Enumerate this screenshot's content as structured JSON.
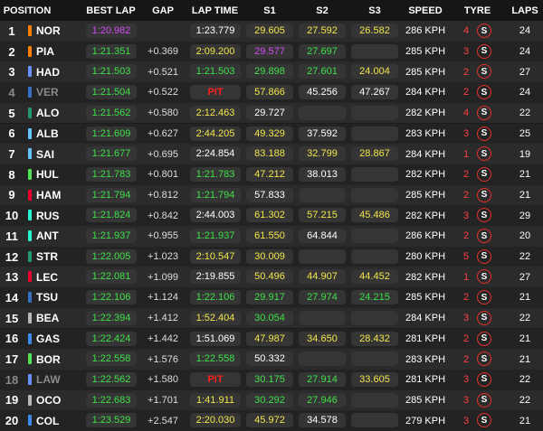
{
  "palette": {
    "p": "#d24df7",
    "g": "#3fe04a",
    "y": "#f2e64c",
    "w": "#ffffff",
    "r": "#ff2020"
  },
  "header": [
    "POSITION",
    "BEST LAP",
    "GAP",
    "LAP TIME",
    "S1",
    "S2",
    "S3",
    "SPEED",
    "TYRE",
    "LAPS"
  ],
  "rows": [
    {
      "pos": 1,
      "driver": "NOR",
      "team": "#ff8000",
      "best": {
        "t": "1:20.982",
        "c": "p"
      },
      "gap": null,
      "lap": {
        "t": "1:23.779",
        "c": "w"
      },
      "s1": {
        "t": "29.605",
        "c": "y"
      },
      "s2": {
        "t": "27.592",
        "c": "y"
      },
      "s3": {
        "t": "26.582",
        "c": "y"
      },
      "speed": "286 KPH",
      "age": 4,
      "tyre": "S",
      "laps": 24
    },
    {
      "pos": 2,
      "driver": "PIA",
      "team": "#ff8000",
      "best": {
        "t": "1:21.351",
        "c": "g"
      },
      "gap": "+0.369",
      "lap": {
        "t": "2:09.200",
        "c": "y"
      },
      "s1": {
        "t": "29.577",
        "c": "p"
      },
      "s2": {
        "t": "27.697",
        "c": "g"
      },
      "s3": null,
      "speed": "285 KPH",
      "age": 3,
      "tyre": "S",
      "laps": 24
    },
    {
      "pos": 3,
      "driver": "HAD",
      "team": "#6692ff",
      "best": {
        "t": "1:21.503",
        "c": "g"
      },
      "gap": "+0.521",
      "lap": {
        "t": "1:21.503",
        "c": "g"
      },
      "s1": {
        "t": "29.898",
        "c": "g"
      },
      "s2": {
        "t": "27.601",
        "c": "g"
      },
      "s3": {
        "t": "24.004",
        "c": "y"
      },
      "speed": "285 KPH",
      "age": 2,
      "tyre": "S",
      "laps": 27
    },
    {
      "pos": 4,
      "driver": "VER",
      "dim": true,
      "team": "#3671c6",
      "best": {
        "t": "1:21.504",
        "c": "g"
      },
      "gap": "+0.522",
      "lap": {
        "t": "PIT",
        "c": "r"
      },
      "s1": {
        "t": "57.866",
        "c": "y"
      },
      "s2": {
        "t": "45.256",
        "c": "w"
      },
      "s3": {
        "t": "47.267",
        "c": "w"
      },
      "speed": "284 KPH",
      "age": 2,
      "tyre": "S",
      "laps": 24
    },
    {
      "pos": 5,
      "driver": "ALO",
      "team": "#229971",
      "best": {
        "t": "1:21.562",
        "c": "g"
      },
      "gap": "+0.580",
      "lap": {
        "t": "2:12.463",
        "c": "y"
      },
      "s1": {
        "t": "29.727",
        "c": "w"
      },
      "s2": null,
      "s3": null,
      "speed": "282 KPH",
      "age": 4,
      "tyre": "S",
      "laps": 22
    },
    {
      "pos": 6,
      "driver": "ALB",
      "team": "#64c4ff",
      "best": {
        "t": "1:21.609",
        "c": "g"
      },
      "gap": "+0.627",
      "lap": {
        "t": "2:44.205",
        "c": "y"
      },
      "s1": {
        "t": "49.329",
        "c": "y"
      },
      "s2": {
        "t": "37.592",
        "c": "w"
      },
      "s3": null,
      "speed": "283 KPH",
      "age": 3,
      "tyre": "S",
      "laps": 25
    },
    {
      "pos": 7,
      "driver": "SAI",
      "team": "#64c4ff",
      "best": {
        "t": "1:21.677",
        "c": "g"
      },
      "gap": "+0.695",
      "lap": {
        "t": "2:24.854",
        "c": "w"
      },
      "s1": {
        "t": "83.188",
        "c": "y"
      },
      "s2": {
        "t": "32.799",
        "c": "y"
      },
      "s3": {
        "t": "28.867",
        "c": "y"
      },
      "speed": "284 KPH",
      "age": 1,
      "tyre": "S",
      "laps": 19
    },
    {
      "pos": 8,
      "driver": "HUL",
      "team": "#52e252",
      "best": {
        "t": "1:21.783",
        "c": "g"
      },
      "gap": "+0.801",
      "lap": {
        "t": "1:21.783",
        "c": "g"
      },
      "s1": {
        "t": "47.212",
        "c": "y"
      },
      "s2": {
        "t": "38.013",
        "c": "w"
      },
      "s3": null,
      "speed": "282 KPH",
      "age": 2,
      "tyre": "S",
      "laps": 21
    },
    {
      "pos": 9,
      "driver": "HAM",
      "team": "#e8002d",
      "best": {
        "t": "1:21.794",
        "c": "g"
      },
      "gap": "+0.812",
      "lap": {
        "t": "1:21.794",
        "c": "g"
      },
      "s1": {
        "t": "57.833",
        "c": "w"
      },
      "s2": null,
      "s3": null,
      "speed": "285 KPH",
      "age": 2,
      "tyre": "S",
      "laps": 21
    },
    {
      "pos": 10,
      "driver": "RUS",
      "team": "#27f4d2",
      "best": {
        "t": "1:21.824",
        "c": "g"
      },
      "gap": "+0.842",
      "lap": {
        "t": "2:44.003",
        "c": "w"
      },
      "s1": {
        "t": "61.302",
        "c": "y"
      },
      "s2": {
        "t": "57.215",
        "c": "y"
      },
      "s3": {
        "t": "45.486",
        "c": "y"
      },
      "speed": "282 KPH",
      "age": 3,
      "tyre": "S",
      "laps": 29
    },
    {
      "pos": 11,
      "driver": "ANT",
      "team": "#27f4d2",
      "best": {
        "t": "1:21.937",
        "c": "g"
      },
      "gap": "+0.955",
      "lap": {
        "t": "1:21.937",
        "c": "g"
      },
      "s1": {
        "t": "61.550",
        "c": "y"
      },
      "s2": {
        "t": "64.844",
        "c": "w"
      },
      "s3": null,
      "speed": "286 KPH",
      "age": 2,
      "tyre": "S",
      "laps": 20
    },
    {
      "pos": 12,
      "driver": "STR",
      "team": "#229971",
      "best": {
        "t": "1:22.005",
        "c": "g"
      },
      "gap": "+1.023",
      "lap": {
        "t": "2:10.547",
        "c": "y"
      },
      "s1": {
        "t": "30.009",
        "c": "y"
      },
      "s2": null,
      "s3": null,
      "speed": "280 KPH",
      "age": 5,
      "tyre": "S",
      "laps": 22
    },
    {
      "pos": 13,
      "driver": "LEC",
      "team": "#e8002d",
      "best": {
        "t": "1:22.081",
        "c": "g"
      },
      "gap": "+1.099",
      "lap": {
        "t": "2:19.855",
        "c": "w"
      },
      "s1": {
        "t": "50.496",
        "c": "y"
      },
      "s2": {
        "t": "44.907",
        "c": "y"
      },
      "s3": {
        "t": "44.452",
        "c": "y"
      },
      "speed": "282 KPH",
      "age": 1,
      "tyre": "S",
      "laps": 27
    },
    {
      "pos": 14,
      "driver": "TSU",
      "team": "#3671c6",
      "best": {
        "t": "1:22.106",
        "c": "g"
      },
      "gap": "+1.124",
      "lap": {
        "t": "1:22.106",
        "c": "g"
      },
      "s1": {
        "t": "29.917",
        "c": "g"
      },
      "s2": {
        "t": "27.974",
        "c": "g"
      },
      "s3": {
        "t": "24.215",
        "c": "g"
      },
      "speed": "285 KPH",
      "age": 2,
      "tyre": "S",
      "laps": 21
    },
    {
      "pos": 15,
      "driver": "BEA",
      "team": "#b6babd",
      "best": {
        "t": "1:22.394",
        "c": "g"
      },
      "gap": "+1.412",
      "lap": {
        "t": "1:52.404",
        "c": "y"
      },
      "s1": {
        "t": "30.054",
        "c": "g"
      },
      "s2": null,
      "s3": null,
      "speed": "284 KPH",
      "age": 3,
      "tyre": "S",
      "laps": 22
    },
    {
      "pos": 16,
      "driver": "GAS",
      "team": "#3b8ef0",
      "best": {
        "t": "1:22.424",
        "c": "g"
      },
      "gap": "+1.442",
      "lap": {
        "t": "1:51.069",
        "c": "w"
      },
      "s1": {
        "t": "47.987",
        "c": "y"
      },
      "s2": {
        "t": "34.650",
        "c": "y"
      },
      "s3": {
        "t": "28.432",
        "c": "y"
      },
      "speed": "281 KPH",
      "age": 2,
      "tyre": "S",
      "laps": 21
    },
    {
      "pos": 17,
      "driver": "BOR",
      "team": "#52e252",
      "best": {
        "t": "1:22.558",
        "c": "g"
      },
      "gap": "+1.576",
      "lap": {
        "t": "1:22.558",
        "c": "g"
      },
      "s1": {
        "t": "50.332",
        "c": "w"
      },
      "s2": null,
      "s3": null,
      "speed": "283 KPH",
      "age": 2,
      "tyre": "S",
      "laps": 21
    },
    {
      "pos": 18,
      "driver": "LAW",
      "dim": true,
      "team": "#6692ff",
      "best": {
        "t": "1:22.562",
        "c": "g"
      },
      "gap": "+1.580",
      "lap": {
        "t": "PIT",
        "c": "r"
      },
      "s1": {
        "t": "30.175",
        "c": "g"
      },
      "s2": {
        "t": "27.914",
        "c": "g"
      },
      "s3": {
        "t": "33.605",
        "c": "y"
      },
      "speed": "281 KPH",
      "age": 3,
      "tyre": "S",
      "laps": 22
    },
    {
      "pos": 19,
      "driver": "OCO",
      "team": "#b6babd",
      "best": {
        "t": "1:22.683",
        "c": "g"
      },
      "gap": "+1.701",
      "lap": {
        "t": "1:41.911",
        "c": "y"
      },
      "s1": {
        "t": "30.292",
        "c": "g"
      },
      "s2": {
        "t": "27.946",
        "c": "g"
      },
      "s3": null,
      "speed": "285 KPH",
      "age": 3,
      "tyre": "S",
      "laps": 22
    },
    {
      "pos": 20,
      "driver": "COL",
      "team": "#3b8ef0",
      "best": {
        "t": "1:23.529",
        "c": "g"
      },
      "gap": "+2.547",
      "lap": {
        "t": "2:20.030",
        "c": "y"
      },
      "s1": {
        "t": "45.972",
        "c": "y"
      },
      "s2": {
        "t": "34.578",
        "c": "w"
      },
      "s3": null,
      "speed": "279 KPH",
      "age": 3,
      "tyre": "S",
      "laps": 21
    }
  ]
}
